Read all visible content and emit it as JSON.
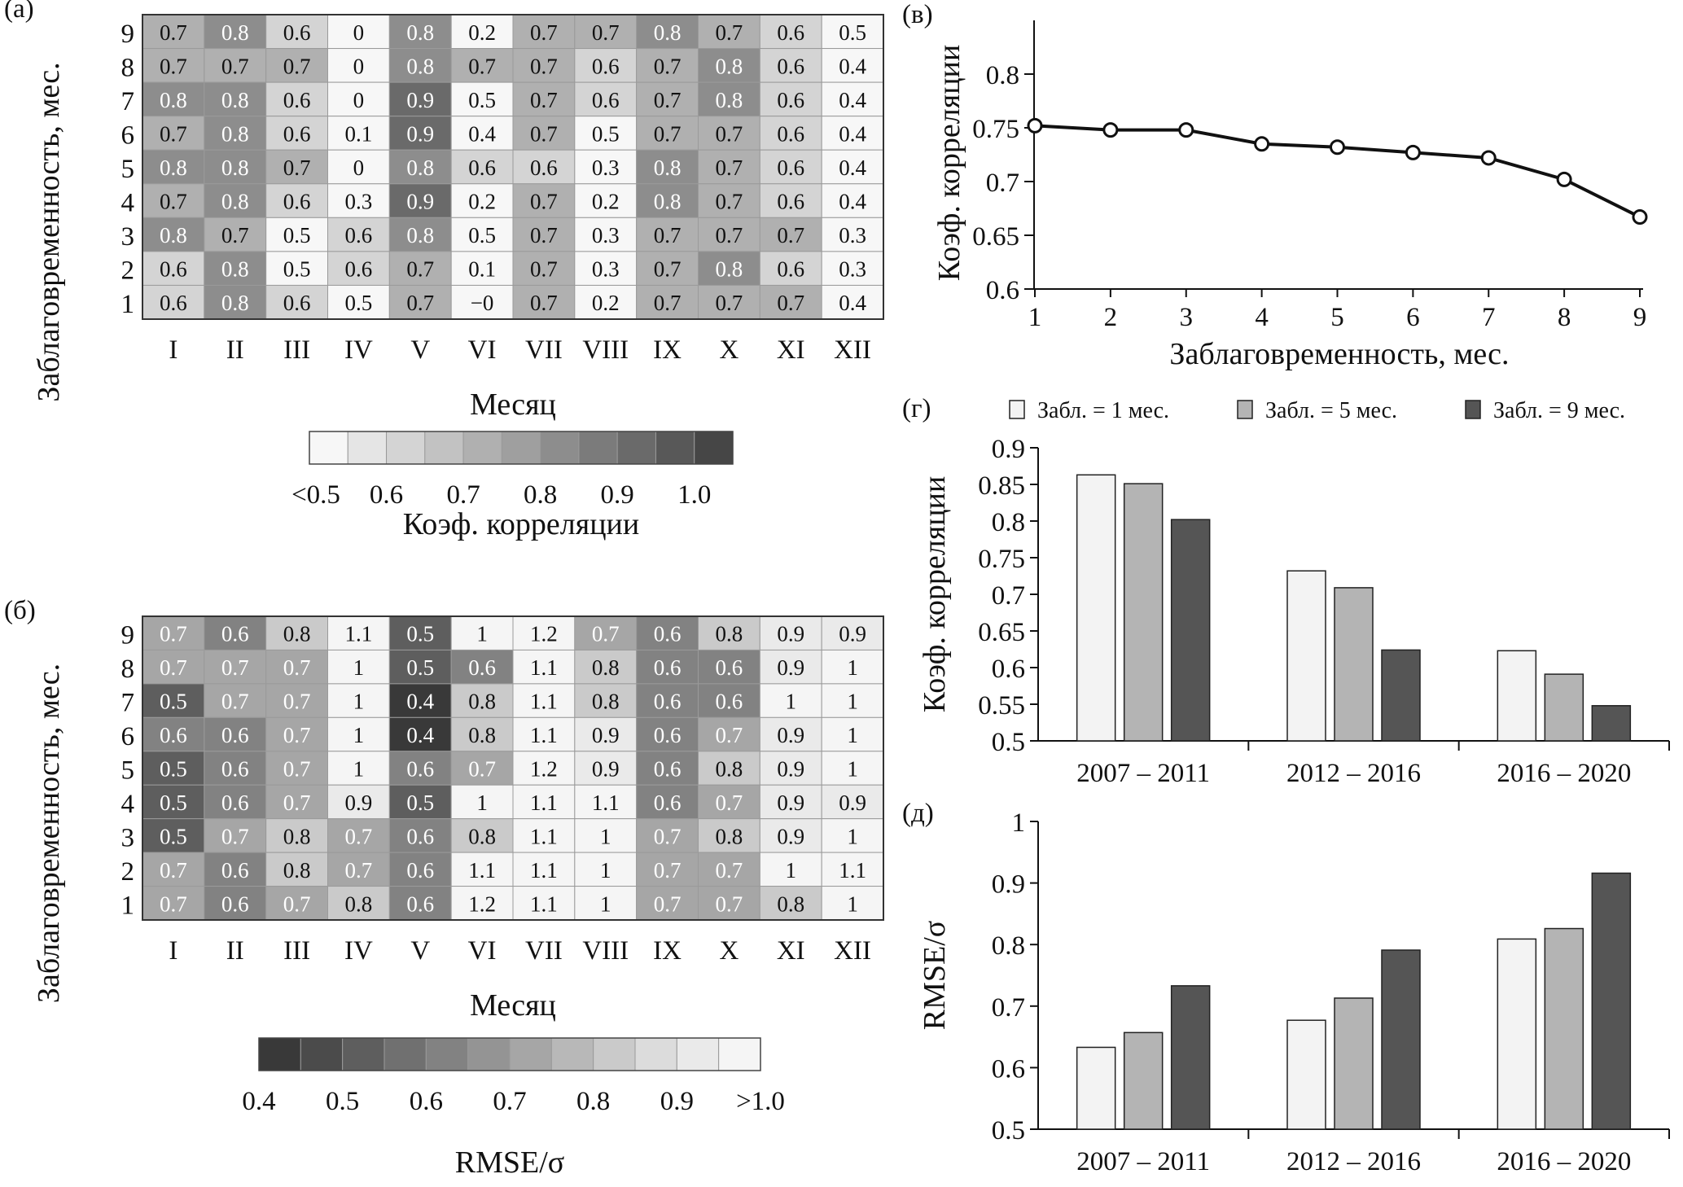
{
  "chart_data": [
    {
      "id": "a",
      "type": "heatmap",
      "panel_label": "(а)",
      "xlabel": "Месяц",
      "ylabel": "Заблаговременность, мес.",
      "x_categories": [
        "I",
        "II",
        "III",
        "IV",
        "V",
        "VI",
        "VII",
        "VIII",
        "IX",
        "X",
        "XI",
        "XII"
      ],
      "y_categories": [
        "9",
        "8",
        "7",
        "6",
        "5",
        "4",
        "3",
        "2",
        "1"
      ],
      "values": [
        [
          "0.7",
          "0.8",
          "0.6",
          "0",
          "0.8",
          "0.2",
          "0.7",
          "0.7",
          "0.8",
          "0.7",
          "0.6",
          "0.5"
        ],
        [
          "0.7",
          "0.7",
          "0.7",
          "0",
          "0.8",
          "0.7",
          "0.7",
          "0.6",
          "0.7",
          "0.8",
          "0.6",
          "0.4"
        ],
        [
          "0.8",
          "0.8",
          "0.6",
          "0",
          "0.9",
          "0.5",
          "0.7",
          "0.6",
          "0.7",
          "0.8",
          "0.6",
          "0.4"
        ],
        [
          "0.7",
          "0.8",
          "0.6",
          "0.1",
          "0.9",
          "0.4",
          "0.7",
          "0.5",
          "0.7",
          "0.7",
          "0.6",
          "0.4"
        ],
        [
          "0.8",
          "0.8",
          "0.7",
          "0",
          "0.8",
          "0.6",
          "0.6",
          "0.3",
          "0.8",
          "0.7",
          "0.6",
          "0.4"
        ],
        [
          "0.7",
          "0.8",
          "0.6",
          "0.3",
          "0.9",
          "0.2",
          "0.7",
          "0.2",
          "0.8",
          "0.7",
          "0.6",
          "0.4"
        ],
        [
          "0.8",
          "0.7",
          "0.5",
          "0.6",
          "0.8",
          "0.5",
          "0.7",
          "0.3",
          "0.7",
          "0.7",
          "0.7",
          "0.3"
        ],
        [
          "0.6",
          "0.8",
          "0.5",
          "0.6",
          "0.7",
          "0.1",
          "0.7",
          "0.3",
          "0.7",
          "0.8",
          "0.6",
          "0.3"
        ],
        [
          "0.6",
          "0.8",
          "0.6",
          "0.5",
          "0.7",
          "−0",
          "0.7",
          "0.2",
          "0.7",
          "0.7",
          "0.7",
          "0.4"
        ]
      ],
      "colorbar": {
        "label": "Коэф. корреляции",
        "tick_labels": [
          "<0.5",
          "0.6",
          "0.7",
          "0.8",
          "0.9",
          "1.0"
        ],
        "colors": [
          "#f7f7f7",
          "#e5e5e5",
          "#d4d4d4",
          "#c2c2c2",
          "#b0b0b0",
          "#9f9f9f",
          "#8d8d8d",
          "#7b7b7b",
          "#6a6a6a",
          "#585858",
          "#464646"
        ]
      }
    },
    {
      "id": "b",
      "type": "heatmap",
      "panel_label": "(б)",
      "xlabel": "Месяц",
      "ylabel": "Заблаговременность, мес.",
      "x_categories": [
        "I",
        "II",
        "III",
        "IV",
        "V",
        "VI",
        "VII",
        "VIII",
        "IX",
        "X",
        "XI",
        "XII"
      ],
      "y_categories": [
        "9",
        "8",
        "7",
        "6",
        "5",
        "4",
        "3",
        "2",
        "1"
      ],
      "values": [
        [
          "0.7",
          "0.6",
          "0.8",
          "1.1",
          "0.5",
          "1",
          "1.2",
          "0.7",
          "0.6",
          "0.8",
          "0.9",
          "0.9"
        ],
        [
          "0.7",
          "0.7",
          "0.7",
          "1",
          "0.5",
          "0.6",
          "1.1",
          "0.8",
          "0.6",
          "0.6",
          "0.9",
          "1"
        ],
        [
          "0.5",
          "0.7",
          "0.7",
          "1",
          "0.4",
          "0.8",
          "1.1",
          "0.8",
          "0.6",
          "0.6",
          "1",
          "1"
        ],
        [
          "0.6",
          "0.6",
          "0.7",
          "1",
          "0.4",
          "0.8",
          "1.1",
          "0.9",
          "0.6",
          "0.7",
          "0.9",
          "1"
        ],
        [
          "0.5",
          "0.6",
          "0.7",
          "1",
          "0.6",
          "0.7",
          "1.2",
          "0.9",
          "0.6",
          "0.8",
          "0.9",
          "1"
        ],
        [
          "0.5",
          "0.6",
          "0.7",
          "0.9",
          "0.5",
          "1",
          "1.1",
          "1.1",
          "0.6",
          "0.7",
          "0.9",
          "0.9"
        ],
        [
          "0.5",
          "0.7",
          "0.8",
          "0.7",
          "0.6",
          "0.8",
          "1.1",
          "1",
          "0.7",
          "0.8",
          "0.9",
          "1"
        ],
        [
          "0.7",
          "0.6",
          "0.8",
          "0.7",
          "0.6",
          "1.1",
          "1.1",
          "1",
          "0.7",
          "0.7",
          "1",
          "1.1"
        ],
        [
          "0.7",
          "0.6",
          "0.7",
          "0.8",
          "0.6",
          "1.2",
          "1.1",
          "1",
          "0.7",
          "0.7",
          "0.8",
          "1"
        ]
      ],
      "colorbar": {
        "label": "RMSE/σ",
        "tick_labels": [
          "0.4",
          "0.5",
          "0.6",
          "0.7",
          "0.8",
          "0.9",
          ">1.0"
        ],
        "colors": [
          "#393939",
          "#4b4b4b",
          "#5e5e5e",
          "#707070",
          "#828282",
          "#949494",
          "#a6a6a6",
          "#b8b8b8",
          "#cacaca",
          "#dcdcdc",
          "#eaeaea",
          "#f5f5f5"
        ]
      }
    },
    {
      "id": "v",
      "type": "line",
      "panel_label": "(в)",
      "xlabel": "Заблаговременность, мес.",
      "ylabel": "Коэф. корреляции",
      "x": [
        1,
        2,
        3,
        4,
        5,
        6,
        7,
        8,
        9
      ],
      "y": [
        0.752,
        0.748,
        0.748,
        0.735,
        0.732,
        0.727,
        0.722,
        0.702,
        0.667
      ],
      "ylim": [
        0.6,
        0.85
      ],
      "yticks": [
        "0.6",
        "0.65",
        "0.7",
        "0.75",
        "0.8"
      ],
      "xticks": [
        "1",
        "2",
        "3",
        "4",
        "5",
        "6",
        "7",
        "8",
        "9"
      ]
    },
    {
      "id": "g",
      "type": "bar",
      "panel_label": "(г)",
      "ylabel": "Коэф. корреляции",
      "categories": [
        "2007 – 2011",
        "2012 – 2016",
        "2016 – 2020"
      ],
      "series": [
        {
          "name": "Забл. = 1 мес.",
          "color": "#f3f3f3",
          "values": [
            0.863,
            0.732,
            0.623
          ]
        },
        {
          "name": "Забл. = 5 мес.",
          "color": "#b4b4b4",
          "values": [
            0.851,
            0.709,
            0.591
          ]
        },
        {
          "name": "Забл. = 9 мес.",
          "color": "#555555",
          "values": [
            0.802,
            0.624,
            0.548
          ]
        }
      ],
      "ylim": [
        0.5,
        0.9
      ],
      "yticks": [
        "0.5",
        "0.55",
        "0.6",
        "0.65",
        "0.7",
        "0.75",
        "0.8",
        "0.85",
        "0.9"
      ]
    },
    {
      "id": "d",
      "type": "bar",
      "panel_label": "(д)",
      "ylabel": "RMSE/σ",
      "categories": [
        "2007 – 2011",
        "2012 – 2016",
        "2016 – 2020"
      ],
      "series": [
        {
          "name": "Забл. = 1 мес.",
          "color": "#f3f3f3",
          "values": [
            0.633,
            0.677,
            0.809
          ]
        },
        {
          "name": "Забл. = 5 мес.",
          "color": "#b4b4b4",
          "values": [
            0.657,
            0.713,
            0.826
          ]
        },
        {
          "name": "Забл. = 9 мес.",
          "color": "#555555",
          "values": [
            0.733,
            0.791,
            0.916
          ]
        }
      ],
      "ylim": [
        0.5,
        1.0
      ],
      "yticks": [
        "0.5",
        "0.6",
        "0.7",
        "0.8",
        "0.9",
        "1"
      ]
    }
  ]
}
